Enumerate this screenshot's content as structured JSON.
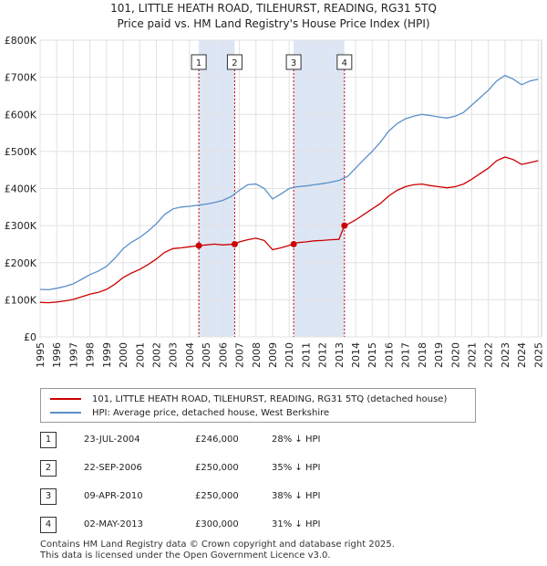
{
  "title": "101, LITTLE HEATH ROAD, TILEHURST, READING, RG31 5TQ",
  "subtitle": "Price paid vs. HM Land Registry's House Price Index (HPI)",
  "colors": {
    "property": "#cc0000",
    "hpi": "#5b8fc9",
    "band": "#dde6f5",
    "vline": "#cc0000"
  },
  "chart_data": {
    "type": "line",
    "xlim": [
      1995,
      2025.2
    ],
    "ylim": [
      0,
      800000
    ],
    "y_ticks": [
      {
        "value": 0,
        "label": "£0"
      },
      {
        "value": 100000,
        "label": "£100K"
      },
      {
        "value": 200000,
        "label": "£200K"
      },
      {
        "value": 300000,
        "label": "£300K"
      },
      {
        "value": 400000,
        "label": "£400K"
      },
      {
        "value": 500000,
        "label": "£500K"
      },
      {
        "value": 600000,
        "label": "£600K"
      },
      {
        "value": 700000,
        "label": "£700K"
      },
      {
        "value": 800000,
        "label": "£800K"
      }
    ],
    "x_ticks": [
      "1995",
      "1996",
      "1997",
      "1998",
      "1999",
      "2000",
      "2001",
      "2002",
      "2003",
      "2004",
      "2005",
      "2006",
      "2007",
      "2008",
      "2009",
      "2010",
      "2011",
      "2012",
      "2013",
      "2014",
      "2015",
      "2016",
      "2017",
      "2018",
      "2019",
      "2020",
      "2021",
      "2022",
      "2023",
      "2024",
      "2025"
    ],
    "grid": true,
    "shaded_periods": [
      [
        2004.56,
        2006.72
      ],
      [
        2010.27,
        2013.33
      ]
    ],
    "series": [
      {
        "name": "101, LITTLE HEATH ROAD, TILEHURST, READING, RG31 5TQ (detached house)",
        "color": "#cc0000",
        "points": [
          [
            1995.0,
            93000
          ],
          [
            1995.5,
            92000
          ],
          [
            1996.0,
            94000
          ],
          [
            1996.5,
            97000
          ],
          [
            1997.0,
            101000
          ],
          [
            1997.5,
            108000
          ],
          [
            1998.0,
            115000
          ],
          [
            1998.5,
            120000
          ],
          [
            1999.0,
            128000
          ],
          [
            1999.5,
            142000
          ],
          [
            2000.0,
            160000
          ],
          [
            2000.5,
            172000
          ],
          [
            2001.0,
            182000
          ],
          [
            2001.5,
            195000
          ],
          [
            2002.0,
            210000
          ],
          [
            2002.5,
            228000
          ],
          [
            2003.0,
            238000
          ],
          [
            2003.5,
            240000
          ],
          [
            2004.0,
            243000
          ],
          [
            2004.56,
            246000
          ],
          [
            2005.0,
            248000
          ],
          [
            2005.5,
            250000
          ],
          [
            2006.0,
            248000
          ],
          [
            2006.72,
            250000
          ],
          [
            2007.0,
            256000
          ],
          [
            2007.5,
            262000
          ],
          [
            2008.0,
            266000
          ],
          [
            2008.5,
            260000
          ],
          [
            2009.0,
            235000
          ],
          [
            2009.5,
            240000
          ],
          [
            2010.27,
            250000
          ],
          [
            2010.5,
            254000
          ],
          [
            2011.0,
            256000
          ],
          [
            2011.5,
            259000
          ],
          [
            2012.0,
            260000
          ],
          [
            2012.5,
            262000
          ],
          [
            2013.0,
            263000
          ],
          [
            2013.33,
            300000
          ],
          [
            2013.5,
            303000
          ],
          [
            2014.0,
            315000
          ],
          [
            2014.5,
            330000
          ],
          [
            2015.0,
            345000
          ],
          [
            2015.5,
            360000
          ],
          [
            2016.0,
            380000
          ],
          [
            2016.5,
            395000
          ],
          [
            2017.0,
            405000
          ],
          [
            2017.5,
            410000
          ],
          [
            2018.0,
            412000
          ],
          [
            2018.5,
            408000
          ],
          [
            2019.0,
            405000
          ],
          [
            2019.5,
            402000
          ],
          [
            2020.0,
            405000
          ],
          [
            2020.5,
            412000
          ],
          [
            2021.0,
            425000
          ],
          [
            2021.5,
            440000
          ],
          [
            2022.0,
            455000
          ],
          [
            2022.5,
            475000
          ],
          [
            2023.0,
            485000
          ],
          [
            2023.5,
            478000
          ],
          [
            2024.0,
            465000
          ],
          [
            2024.5,
            470000
          ],
          [
            2025.0,
            475000
          ]
        ]
      },
      {
        "name": "HPI: Average price, detached house, West Berkshire",
        "color": "#5b8fc9",
        "points": [
          [
            1995.0,
            128000
          ],
          [
            1995.5,
            127000
          ],
          [
            1996.0,
            131000
          ],
          [
            1996.5,
            136000
          ],
          [
            1997.0,
            143000
          ],
          [
            1997.5,
            155000
          ],
          [
            1998.0,
            168000
          ],
          [
            1998.5,
            177000
          ],
          [
            1999.0,
            190000
          ],
          [
            1999.5,
            212000
          ],
          [
            2000.0,
            238000
          ],
          [
            2000.5,
            255000
          ],
          [
            2001.0,
            268000
          ],
          [
            2001.5,
            285000
          ],
          [
            2002.0,
            305000
          ],
          [
            2002.5,
            330000
          ],
          [
            2003.0,
            345000
          ],
          [
            2003.5,
            350000
          ],
          [
            2004.0,
            352000
          ],
          [
            2004.5,
            355000
          ],
          [
            2005.0,
            358000
          ],
          [
            2005.5,
            362000
          ],
          [
            2006.0,
            368000
          ],
          [
            2006.5,
            378000
          ],
          [
            2007.0,
            395000
          ],
          [
            2007.5,
            410000
          ],
          [
            2008.0,
            412000
          ],
          [
            2008.5,
            400000
          ],
          [
            2009.0,
            372000
          ],
          [
            2009.5,
            385000
          ],
          [
            2010.0,
            400000
          ],
          [
            2010.5,
            405000
          ],
          [
            2011.0,
            407000
          ],
          [
            2011.5,
            410000
          ],
          [
            2012.0,
            413000
          ],
          [
            2012.5,
            417000
          ],
          [
            2013.0,
            422000
          ],
          [
            2013.5,
            432000
          ],
          [
            2014.0,
            455000
          ],
          [
            2014.5,
            478000
          ],
          [
            2015.0,
            500000
          ],
          [
            2015.5,
            525000
          ],
          [
            2016.0,
            555000
          ],
          [
            2016.5,
            575000
          ],
          [
            2017.0,
            588000
          ],
          [
            2017.5,
            595000
          ],
          [
            2018.0,
            600000
          ],
          [
            2018.5,
            597000
          ],
          [
            2019.0,
            593000
          ],
          [
            2019.5,
            590000
          ],
          [
            2020.0,
            595000
          ],
          [
            2020.5,
            605000
          ],
          [
            2021.0,
            625000
          ],
          [
            2021.5,
            645000
          ],
          [
            2022.0,
            665000
          ],
          [
            2022.5,
            690000
          ],
          [
            2023.0,
            705000
          ],
          [
            2023.5,
            695000
          ],
          [
            2024.0,
            680000
          ],
          [
            2024.5,
            690000
          ],
          [
            2025.0,
            695000
          ]
        ]
      }
    ],
    "annotations": [
      {
        "label": "1",
        "x": 2004.56,
        "y": 246000
      },
      {
        "label": "2",
        "x": 2006.72,
        "y": 250000
      },
      {
        "label": "3",
        "x": 2010.27,
        "y": 250000
      },
      {
        "label": "4",
        "x": 2013.33,
        "y": 300000
      }
    ]
  },
  "legend": {
    "property": "101, LITTLE HEATH ROAD, TILEHURST, READING, RG31 5TQ (detached house)",
    "hpi": "HPI: Average price, detached house, West Berkshire"
  },
  "sales": [
    {
      "num": "1",
      "date": "23-JUL-2004",
      "price": "£246,000",
      "hpi": "28% ↓ HPI"
    },
    {
      "num": "2",
      "date": "22-SEP-2006",
      "price": "£250,000",
      "hpi": "35% ↓ HPI"
    },
    {
      "num": "3",
      "date": "09-APR-2010",
      "price": "£250,000",
      "hpi": "38% ↓ HPI"
    },
    {
      "num": "4",
      "date": "02-MAY-2013",
      "price": "£300,000",
      "hpi": "31% ↓ HPI"
    }
  ],
  "footer": {
    "line1": "Contains HM Land Registry data © Crown copyright and database right 2025.",
    "line2": "This data is licensed under the Open Government Licence v3.0."
  }
}
